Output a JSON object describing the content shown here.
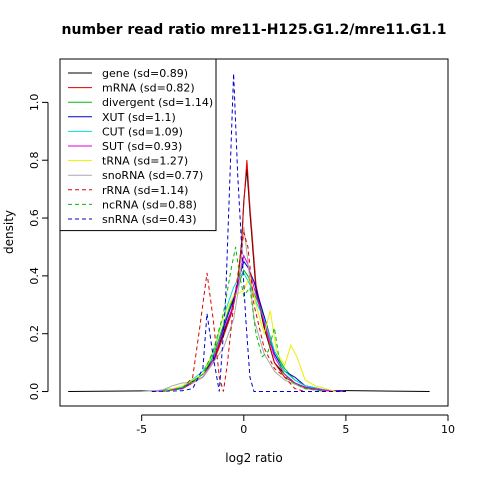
{
  "chart_data": {
    "type": "line",
    "title": "number read ratio mre11-H125.G1.2/mre11.G1.1",
    "xlabel": "log2 ratio",
    "ylabel": "density",
    "xlim": [
      -9,
      10
    ],
    "ylim": [
      -0.05,
      1.15
    ],
    "xticks": [
      -5,
      0,
      5,
      10
    ],
    "yticks": [
      0.0,
      0.2,
      0.4,
      0.6,
      0.8,
      1.0
    ],
    "xtick_labels": [
      "-5",
      "0",
      "5",
      "10"
    ],
    "ytick_labels": [
      "0.0",
      "0.2",
      "0.4",
      "0.6",
      "0.8",
      "1.0"
    ],
    "legend_position": "top-left",
    "series": [
      {
        "name": "gene (sd=0.89)",
        "color": "#000000",
        "dash": "solid",
        "points": [
          [
            -8.6,
            0
          ],
          [
            -4,
            0.003
          ],
          [
            -3,
            0.01
          ],
          [
            -2,
            0.06
          ],
          [
            -1.5,
            0.11
          ],
          [
            -1,
            0.2
          ],
          [
            -0.6,
            0.28
          ],
          [
            -0.3,
            0.38
          ],
          [
            -0.1,
            0.52
          ],
          [
            0,
            0.66
          ],
          [
            0.15,
            0.77
          ],
          [
            0.3,
            0.62
          ],
          [
            0.6,
            0.35
          ],
          [
            1,
            0.22
          ],
          [
            1.5,
            0.1
          ],
          [
            2,
            0.06
          ],
          [
            2.5,
            0.03
          ],
          [
            3,
            0.015
          ],
          [
            4,
            0.004
          ],
          [
            9.1,
            0
          ]
        ]
      },
      {
        "name": "mRNA (sd=0.82)",
        "color": "#dd0000",
        "dash": "solid",
        "points": [
          [
            -4.5,
            0
          ],
          [
            -3,
            0.01
          ],
          [
            -2,
            0.05
          ],
          [
            -1.5,
            0.1
          ],
          [
            -1,
            0.19
          ],
          [
            -0.6,
            0.27
          ],
          [
            -0.3,
            0.37
          ],
          [
            -0.1,
            0.52
          ],
          [
            0,
            0.65
          ],
          [
            0.15,
            0.8
          ],
          [
            0.3,
            0.64
          ],
          [
            0.6,
            0.37
          ],
          [
            1,
            0.23
          ],
          [
            1.5,
            0.1
          ],
          [
            2,
            0.05
          ],
          [
            2.5,
            0.03
          ],
          [
            3,
            0.012
          ],
          [
            4,
            0.003
          ],
          [
            5,
            0
          ]
        ]
      },
      {
        "name": "divergent (sd=1.14)",
        "color": "#00bb00",
        "dash": "solid",
        "points": [
          [
            -4.5,
            0
          ],
          [
            -3,
            0.015
          ],
          [
            -2,
            0.06
          ],
          [
            -1.5,
            0.12
          ],
          [
            -1,
            0.23
          ],
          [
            -0.6,
            0.31
          ],
          [
            -0.2,
            0.38
          ],
          [
            0,
            0.42
          ],
          [
            0.2,
            0.4
          ],
          [
            0.5,
            0.34
          ],
          [
            1,
            0.26
          ],
          [
            1.5,
            0.14
          ],
          [
            2,
            0.08
          ],
          [
            2.5,
            0.04
          ],
          [
            3,
            0.02
          ],
          [
            4,
            0.005
          ],
          [
            5,
            0
          ]
        ]
      },
      {
        "name": "XUT (sd=1.1)",
        "color": "#0000cc",
        "dash": "solid",
        "points": [
          [
            -4.5,
            0
          ],
          [
            -3,
            0.012
          ],
          [
            -2,
            0.05
          ],
          [
            -1.5,
            0.1
          ],
          [
            -1,
            0.22
          ],
          [
            -0.5,
            0.32
          ],
          [
            -0.2,
            0.4
          ],
          [
            0,
            0.45
          ],
          [
            0.2,
            0.43
          ],
          [
            0.5,
            0.38
          ],
          [
            1,
            0.26
          ],
          [
            1.5,
            0.13
          ],
          [
            2,
            0.07
          ],
          [
            2.5,
            0.05
          ],
          [
            3,
            0.02
          ],
          [
            4,
            0.005
          ],
          [
            5,
            0
          ]
        ]
      },
      {
        "name": "CUT (sd=1.09)",
        "color": "#00dddd",
        "dash": "solid",
        "points": [
          [
            -4.5,
            0
          ],
          [
            -3,
            0.015
          ],
          [
            -2,
            0.07
          ],
          [
            -1.5,
            0.13
          ],
          [
            -1,
            0.26
          ],
          [
            -0.5,
            0.36
          ],
          [
            -0.2,
            0.4
          ],
          [
            0,
            0.41
          ],
          [
            0.3,
            0.37
          ],
          [
            0.6,
            0.31
          ],
          [
            1,
            0.25
          ],
          [
            1.5,
            0.14
          ],
          [
            2,
            0.07
          ],
          [
            2.5,
            0.04
          ],
          [
            3,
            0.02
          ],
          [
            4,
            0.005
          ],
          [
            5,
            0
          ]
        ]
      },
      {
        "name": "SUT (sd=0.93)",
        "color": "#dd00dd",
        "dash": "solid",
        "points": [
          [
            -4.5,
            0
          ],
          [
            -3,
            0.01
          ],
          [
            -2,
            0.05
          ],
          [
            -1.5,
            0.11
          ],
          [
            -1,
            0.21
          ],
          [
            -0.5,
            0.3
          ],
          [
            -0.2,
            0.4
          ],
          [
            0,
            0.47
          ],
          [
            0.2,
            0.44
          ],
          [
            0.5,
            0.36
          ],
          [
            1,
            0.24
          ],
          [
            1.5,
            0.12
          ],
          [
            2,
            0.06
          ],
          [
            2.5,
            0.03
          ],
          [
            3,
            0.015
          ],
          [
            4,
            0.004
          ],
          [
            5,
            0
          ]
        ]
      },
      {
        "name": "tRNA (sd=1.27)",
        "color": "#eeee00",
        "dash": "solid",
        "points": [
          [
            -4,
            0
          ],
          [
            -3,
            0.02
          ],
          [
            -2,
            0.06
          ],
          [
            -1.5,
            0.14
          ],
          [
            -1,
            0.26
          ],
          [
            -0.5,
            0.33
          ],
          [
            0,
            0.35
          ],
          [
            0.3,
            0.4
          ],
          [
            0.6,
            0.3
          ],
          [
            1,
            0.2
          ],
          [
            1.3,
            0.28
          ],
          [
            1.6,
            0.14
          ],
          [
            2,
            0.09
          ],
          [
            2.3,
            0.16
          ],
          [
            2.6,
            0.12
          ],
          [
            3,
            0.04
          ],
          [
            3.5,
            0.02
          ],
          [
            4.5,
            0
          ]
        ]
      },
      {
        "name": "snoRNA (sd=0.77)",
        "color": "#aaaaaa",
        "dash": "solid",
        "points": [
          [
            -5,
            0
          ],
          [
            -4,
            0.005
          ],
          [
            -3.5,
            0.02
          ],
          [
            -3,
            0.03
          ],
          [
            -2.5,
            0.03
          ],
          [
            -2,
            0.05
          ],
          [
            -1.5,
            0.1
          ],
          [
            -1,
            0.15
          ],
          [
            -0.5,
            0.25
          ],
          [
            -0.2,
            0.38
          ],
          [
            0,
            0.57
          ],
          [
            0.2,
            0.45
          ],
          [
            0.5,
            0.25
          ],
          [
            1,
            0.13
          ],
          [
            1.5,
            0.07
          ],
          [
            2,
            0.04
          ],
          [
            3,
            0.01
          ],
          [
            4,
            0
          ]
        ]
      },
      {
        "name": "rRNA (sd=1.14)",
        "color": "#dd0000",
        "dash": "dashed",
        "points": [
          [
            -4,
            0
          ],
          [
            -3,
            0.01
          ],
          [
            -2.5,
            0.05
          ],
          [
            -2.2,
            0.2
          ],
          [
            -1.8,
            0.41
          ],
          [
            -1.5,
            0.25
          ],
          [
            -1.2,
            0.05
          ],
          [
            -1,
            0
          ],
          [
            -0.8,
            0.1
          ],
          [
            -0.5,
            0.3
          ],
          [
            -0.2,
            0.45
          ],
          [
            0,
            0.55
          ],
          [
            0.2,
            0.5
          ],
          [
            0.5,
            0.3
          ],
          [
            1,
            0.15
          ],
          [
            1.5,
            0.08
          ],
          [
            2,
            0.05
          ],
          [
            2.5,
            0.01
          ],
          [
            3,
            0
          ]
        ]
      },
      {
        "name": "ncRNA (sd=0.88)",
        "color": "#00bb00",
        "dash": "dashed",
        "points": [
          [
            -4,
            0
          ],
          [
            -3,
            0.01
          ],
          [
            -2,
            0.06
          ],
          [
            -1.5,
            0.14
          ],
          [
            -1,
            0.27
          ],
          [
            -0.6,
            0.43
          ],
          [
            -0.4,
            0.5
          ],
          [
            -0.2,
            0.4
          ],
          [
            0,
            0.33
          ],
          [
            0.3,
            0.36
          ],
          [
            0.6,
            0.2
          ],
          [
            0.9,
            0.12
          ],
          [
            1.2,
            0.14
          ],
          [
            1.5,
            0.22
          ],
          [
            1.8,
            0.08
          ],
          [
            2.2,
            0.04
          ],
          [
            3,
            0.01
          ],
          [
            4,
            0
          ]
        ]
      },
      {
        "name": "snRNA (sd=0.43)",
        "color": "#0000cc",
        "dash": "dashed",
        "points": [
          [
            -4.5,
            0
          ],
          [
            -3,
            0.003
          ],
          [
            -2.5,
            0.01
          ],
          [
            -2,
            0.08
          ],
          [
            -1.8,
            0.27
          ],
          [
            -1.5,
            0.12
          ],
          [
            -1.2,
            0
          ],
          [
            -0.9,
            0.3
          ],
          [
            -0.7,
            0.7
          ],
          [
            -0.5,
            1.1
          ],
          [
            -0.3,
            0.75
          ],
          [
            -0.1,
            0.5
          ],
          [
            0.1,
            0.25
          ],
          [
            0.3,
            0.05
          ],
          [
            0.5,
            0
          ],
          [
            1,
            0
          ],
          [
            5,
            0
          ]
        ]
      }
    ]
  }
}
